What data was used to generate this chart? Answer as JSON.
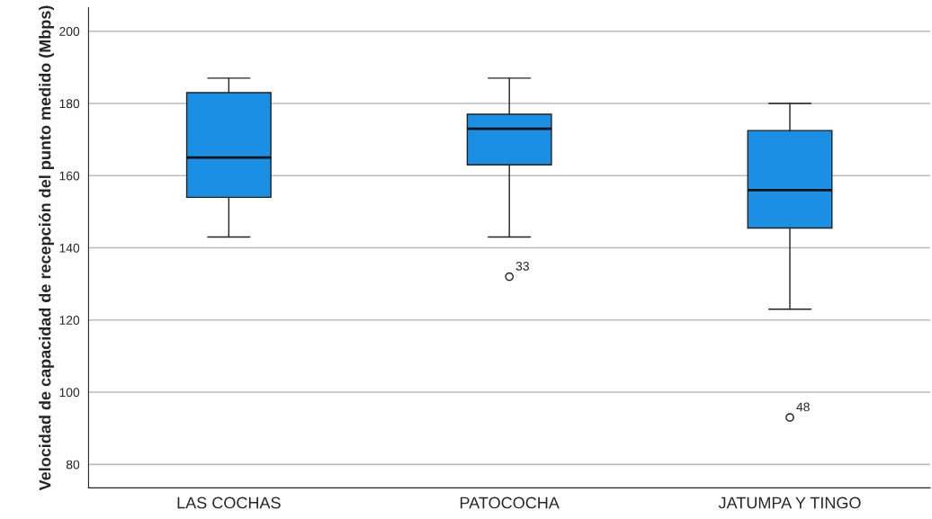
{
  "chart_data": {
    "type": "box",
    "ylabel": "Velocidad de capacidad de recepción del punto medido (Mbps)",
    "categories": [
      "LAS COCHAS",
      "PATOCOCHA",
      "JATUMPA Y TINGO"
    ],
    "color": "#1a8fe3",
    "boxes": [
      {
        "low": 143,
        "q1": 154,
        "median": 165,
        "q3": 183,
        "high": 187
      },
      {
        "low": 143,
        "q1": 163,
        "median": 173,
        "q3": 177,
        "high": 187,
        "outliers": [
          132
        ]
      },
      {
        "low": 123,
        "q1": 145.5,
        "median": 156,
        "q3": 172.5,
        "high": 180,
        "outliers": [
          93
        ]
      }
    ],
    "annotations": [
      "33",
      "48"
    ],
    "ylim": [
      73.5,
      206.5
    ],
    "yticks": [
      80,
      100,
      120,
      140,
      160,
      180,
      200
    ],
    "grid": "y"
  }
}
